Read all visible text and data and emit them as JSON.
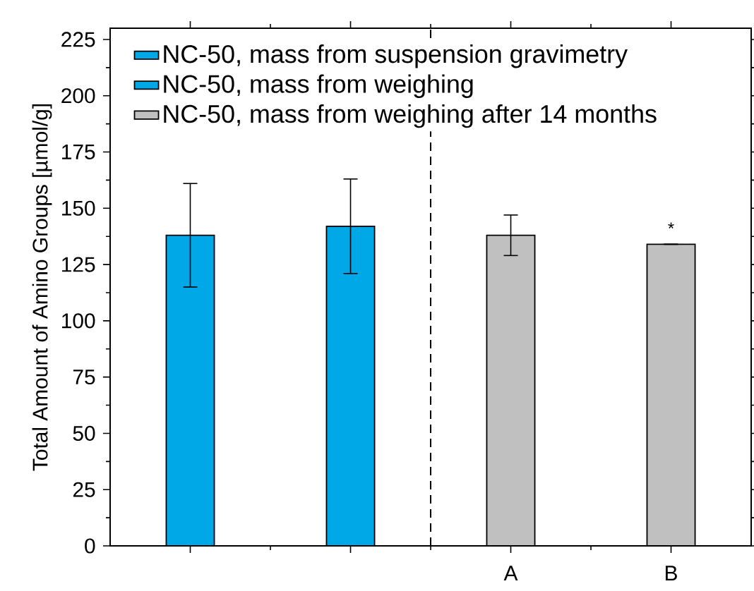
{
  "chart_data": {
    "type": "bar",
    "ylabel": "Total Amount of Amino Groups [µmol/g]",
    "categories": [
      null,
      null,
      "A",
      "B"
    ],
    "series": [
      {
        "name": "NC-50, mass from suspension gravimetry",
        "color": "#00a8e8",
        "values": [
          138,
          null,
          null,
          null
        ],
        "errors": [
          23,
          null,
          null,
          null
        ]
      },
      {
        "name": "NC-50, mass from weighing",
        "color": "#00a8e8",
        "values": [
          null,
          142,
          null,
          null
        ],
        "errors": [
          null,
          21,
          null,
          null
        ]
      },
      {
        "name": "NC-50, mass from weighing after 14 months",
        "color": "#c0c0c0",
        "values": [
          null,
          null,
          138,
          134
        ],
        "errors": [
          null,
          null,
          9,
          null
        ]
      }
    ],
    "ylim": [
      0,
      230
    ],
    "yticks": [
      0,
      25,
      50,
      75,
      100,
      125,
      150,
      175,
      200,
      225
    ],
    "annotations": [
      "*"
    ],
    "legend": "top left"
  }
}
